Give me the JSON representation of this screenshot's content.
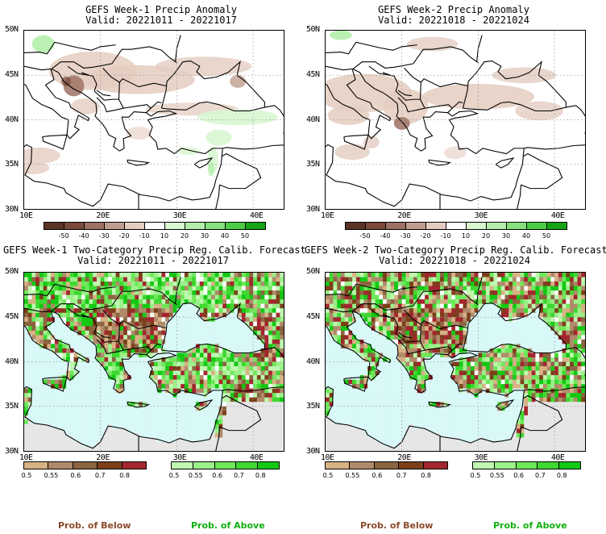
{
  "panels": [
    {
      "title": "GEFS Week-1 Precip Anomaly",
      "valid": "Valid: 20221011 - 20221017",
      "kind": "anomaly"
    },
    {
      "title": "GEFS Week-2 Precip Anomaly",
      "valid": "Valid: 20221018 - 20221024",
      "kind": "anomaly"
    },
    {
      "title": "GEFS Week-1 Two-Category Precip Reg. Calib. Forecast",
      "valid": "Valid: 20221011 - 20221017",
      "kind": "prob"
    },
    {
      "title": "GEFS Week-2 Two-Category Precip Reg. Calib. Forecast",
      "valid": "Valid: 20221018 - 20221024",
      "kind": "prob"
    }
  ],
  "lat_labels": [
    "50N",
    "45N",
    "40N",
    "35N",
    "30N"
  ],
  "lon_labels": [
    "10E",
    "20E",
    "30E",
    "40E"
  ],
  "anomaly_colorbar": {
    "colors": [
      "#5a3325",
      "#7a4a3b",
      "#9d7163",
      "#c19d8f",
      "#e4cdc0",
      "#ffffff",
      "#d8f6d0",
      "#b4eeab",
      "#86e07c",
      "#4ccd45",
      "#14a514"
    ],
    "ticks": [
      "-50",
      "-40",
      "-30",
      "-20",
      "-10",
      "10",
      "20",
      "30",
      "40",
      "50"
    ]
  },
  "below_colorbar": {
    "colors": [
      "#d8b185",
      "#b08a6a",
      "#8c6441",
      "#7c3f1a",
      "#a3262e"
    ],
    "ticks": [
      "0.5",
      "0.55",
      "0.6",
      "0.7",
      "0.8"
    ]
  },
  "above_colorbar": {
    "colors": [
      "#bff8b0",
      "#9bf08a",
      "#6ee85a",
      "#3fd830",
      "#14c814"
    ],
    "ticks": [
      "0.5",
      "0.55",
      "0.6",
      "0.7",
      "0.8"
    ]
  },
  "legend": {
    "below": "Prob. of Below",
    "above": "Prob. of Above"
  },
  "colors": {
    "below_text": "#8b4a2b",
    "above_text": "#10b010",
    "sea": "#d9f8f8",
    "land_nodata": "#e6e6e6"
  }
}
